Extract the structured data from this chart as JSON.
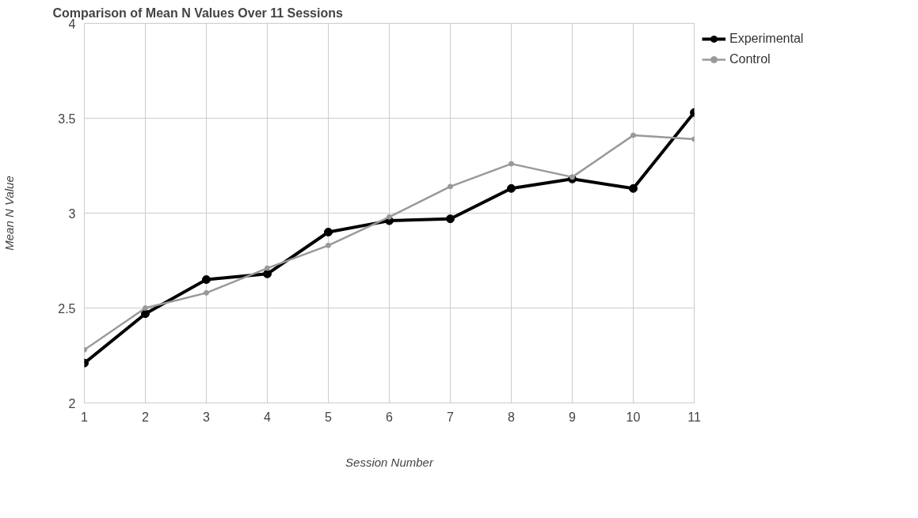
{
  "chart_data": {
    "type": "line",
    "title": "Comparison of Mean N Values Over 11 Sessions",
    "xlabel": "Session Number",
    "ylabel": "Mean N Value",
    "x": [
      1,
      2,
      3,
      4,
      5,
      6,
      7,
      8,
      9,
      10,
      11
    ],
    "series": [
      {
        "name": "Experimental",
        "color": "#000000",
        "values": [
          2.21,
          2.47,
          2.65,
          2.68,
          2.9,
          2.96,
          2.97,
          3.13,
          3.18,
          3.13,
          3.53
        ]
      },
      {
        "name": "Control",
        "color": "#999999",
        "values": [
          2.28,
          2.5,
          2.58,
          2.71,
          2.83,
          2.98,
          3.14,
          3.26,
          3.19,
          3.41,
          3.39
        ]
      }
    ],
    "xlim": [
      1,
      11
    ],
    "xticks": [
      1,
      2,
      3,
      4,
      5,
      6,
      7,
      8,
      9,
      10,
      11
    ],
    "ylim": [
      2,
      4
    ],
    "yticks": [
      2,
      2.5,
      3,
      3.5,
      4
    ],
    "grid": true,
    "legend": "top right",
    "marker": "circle",
    "line_style": "solid"
  }
}
